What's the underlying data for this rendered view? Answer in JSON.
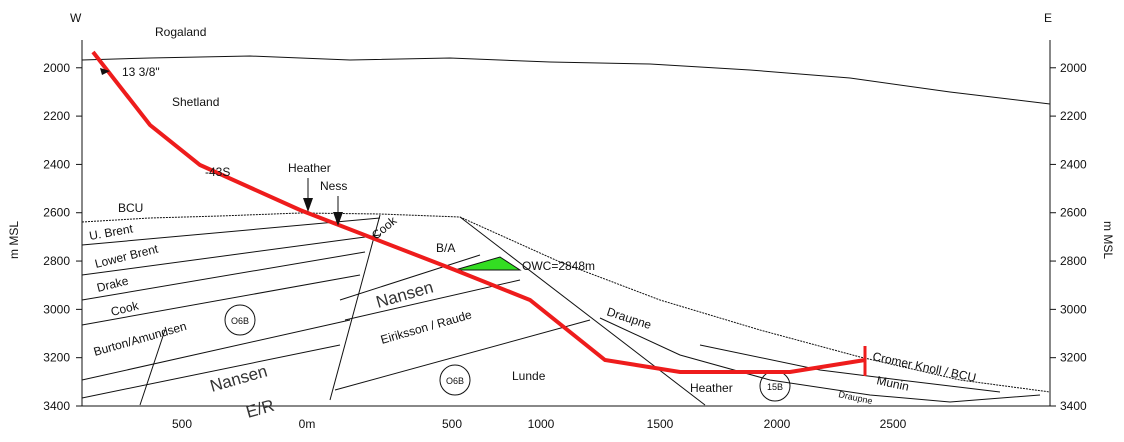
{
  "compass": {
    "west": "W",
    "east": "E"
  },
  "y_axis": {
    "label": "m MSL",
    "range": [
      1885,
      3400
    ],
    "ticks": [
      2000,
      2200,
      2400,
      2600,
      2800,
      3000,
      3200,
      3400
    ]
  },
  "x_axis": {
    "ticks": [
      "500",
      "0m",
      "500",
      "1000",
      "1500",
      "2000",
      "2500"
    ]
  },
  "formations": [
    "Rogaland",
    "Shetland",
    "BCU",
    "U. Brent",
    "Lower Brent",
    "Drake",
    "Cook",
    "Burton/Amundsen",
    "Nansen",
    "E/R",
    "Cook",
    "B/A",
    "Nansen",
    "Eiriksson / Raude",
    "Draupne",
    "Lunde",
    "Heather",
    "Cromer Knoll / BCU",
    "Munin",
    "Draupne"
  ],
  "annotations": {
    "casing": "13 3/8\"",
    "well": "-43S",
    "heather": "Heather",
    "ness": "Ness",
    "owc": "OWC=2848m"
  },
  "zones": [
    "O6B",
    "O6B",
    "15B"
  ]
}
